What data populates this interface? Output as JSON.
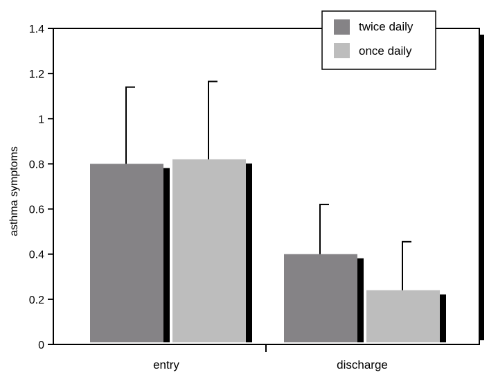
{
  "chart_data": {
    "type": "bar",
    "categories": [
      "entry",
      "discharge"
    ],
    "series": [
      {
        "name": "twice daily",
        "values": [
          0.8,
          0.4
        ],
        "errors": [
          0.34,
          0.22
        ],
        "color": "#858386"
      },
      {
        "name": "once daily",
        "values": [
          0.82,
          0.24
        ],
        "errors": [
          0.345,
          0.215
        ],
        "color": "#bdbdbd"
      }
    ],
    "ylabel": "asthma symptoms",
    "xlabel": "",
    "ylim": [
      0,
      1.4
    ],
    "yticks": [
      "0",
      "0.2",
      "0.4",
      "0.6",
      "0.8",
      "1",
      "1.2",
      "1.4"
    ],
    "yticks_values": [
      0,
      0.2,
      0.4,
      0.6,
      0.8,
      1.0,
      1.2,
      1.4
    ],
    "grid": false,
    "legend_position": "top-right"
  }
}
